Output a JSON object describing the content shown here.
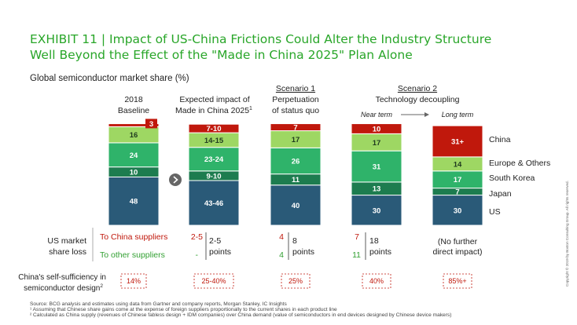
{
  "title": {
    "line1": "EXHIBIT 11 | Impact of US-China Frictions Could Alter the Industry Structure",
    "line2": "Well Beyond the Effect of the \"Made in China 2025\" Plan Alone"
  },
  "subtitle": "Global semiconductor market share (%)",
  "headers": {
    "col1": [
      "2018",
      "Baseline"
    ],
    "col2": [
      "Expected impact of",
      "Made in China 2025",
      "1"
    ],
    "scenario1": {
      "title": "Scenario 1",
      "lines": [
        "Perpetuation",
        "of status quo"
      ]
    },
    "scenario2": {
      "title": "Scenario 2",
      "line": "Technology decoupling",
      "near": "Near term",
      "long": "Long term"
    }
  },
  "colors": {
    "China": "#c0180c",
    "Europe & Others": "#9ed763",
    "South Korea": "#2fb36a",
    "Japan": "#1d7c4f",
    "US": "#2a5a78"
  },
  "chart_data": {
    "type": "bar",
    "stacked": true,
    "categories": [
      "2018 Baseline",
      "Expected impact of Made in China 2025",
      "Scenario 1: Perpetuation of status quo",
      "Scenario 2: Near term",
      "Scenario 2: Long term"
    ],
    "series": [
      {
        "name": "US",
        "values": [
          48,
          44.5,
          40,
          30,
          30
        ],
        "labels": [
          "48",
          "43-46",
          "40",
          "30",
          "30"
        ]
      },
      {
        "name": "Japan",
        "values": [
          10,
          9.5,
          11,
          13,
          7
        ],
        "labels": [
          "10",
          "9-10",
          "11",
          "13",
          "7"
        ]
      },
      {
        "name": "South Korea",
        "values": [
          24,
          23.5,
          26,
          31,
          17
        ],
        "labels": [
          "24",
          "23-24",
          "26",
          "31",
          "17"
        ]
      },
      {
        "name": "Europe & Others",
        "values": [
          16,
          14.5,
          17,
          17,
          14
        ],
        "labels": [
          "16",
          "14-15",
          "17",
          "17",
          "14"
        ]
      },
      {
        "name": "China",
        "values": [
          3,
          8.5,
          7,
          10,
          31
        ],
        "labels": [
          "3",
          "7-10",
          "7",
          "10",
          "31+"
        ]
      }
    ],
    "ylim": [
      0,
      103
    ],
    "legend_position": "right"
  },
  "loss": {
    "label": [
      "US market",
      "share loss"
    ],
    "to_china": "To China suppliers",
    "to_other": "To other suppliers",
    "values": [
      {
        "china": "2-5",
        "other": "-",
        "total": [
          "2-5",
          "points"
        ]
      },
      {
        "china": "4",
        "other": "4",
        "total": [
          "8",
          "points"
        ]
      },
      {
        "china": "7",
        "other": "11",
        "total": [
          "18",
          "points"
        ]
      }
    ],
    "no_further": [
      "(No further",
      "direct impact)"
    ]
  },
  "self_sufficiency": {
    "label": [
      "China's self-sufficiency in",
      "semiconductor design",
      "2"
    ],
    "values": [
      "14%",
      "25-40%",
      "25%",
      "40%",
      "85%+"
    ]
  },
  "footnotes": [
    "Source: BCG analysis and estimates using data from Gartner and company reports, Morgan Stanley, IC Insights",
    "¹ Assuming that Chinese share gains come at the expense of foreign suppliers proportionally to the current shares in each product line",
    "² Calculated as China supply (revenues of Chinese fabless design + IDM companies) over China demand (value of semiconductors in end devices designed by Chinese device makers)"
  ],
  "copyright": "Copyright © 2019 by Boston Consulting Group. All rights reserved."
}
